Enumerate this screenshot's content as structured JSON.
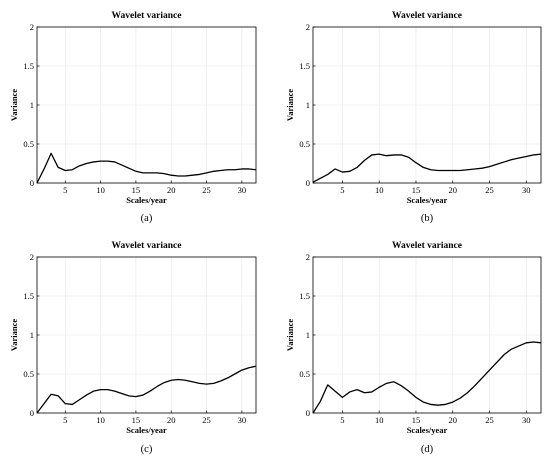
{
  "chart_data": [
    {
      "type": "line",
      "title": "Wavelet variance",
      "xlabel": "Scales/year",
      "ylabel": "Variance",
      "caption": "(a)",
      "xlim": [
        1,
        32
      ],
      "ylim": [
        0,
        2
      ],
      "xticks": [
        "5",
        "10",
        "15",
        "20",
        "25",
        "30"
      ],
      "yticks": [
        "0",
        "0.5",
        "1",
        "1.5",
        "2"
      ],
      "grid": true,
      "series": [
        {
          "x": [
            1,
            2,
            3,
            4,
            5,
            6,
            7,
            8,
            9,
            10,
            11,
            12,
            13,
            14,
            15,
            16,
            17,
            18,
            19,
            20,
            21,
            22,
            23,
            24,
            25,
            26,
            27,
            28,
            29,
            30,
            31,
            32
          ],
          "y": [
            0.0,
            0.18,
            0.38,
            0.2,
            0.16,
            0.17,
            0.22,
            0.25,
            0.27,
            0.28,
            0.28,
            0.27,
            0.23,
            0.19,
            0.15,
            0.13,
            0.13,
            0.13,
            0.12,
            0.1,
            0.09,
            0.09,
            0.1,
            0.11,
            0.13,
            0.15,
            0.16,
            0.17,
            0.17,
            0.18,
            0.18,
            0.17
          ]
        }
      ]
    },
    {
      "type": "line",
      "title": "Wavelet variance",
      "xlabel": "Scales/year",
      "ylabel": "Variance",
      "caption": "(b)",
      "xlim": [
        1,
        32
      ],
      "ylim": [
        0,
        2
      ],
      "xticks": [
        "5",
        "10",
        "15",
        "20",
        "25",
        "30"
      ],
      "yticks": [
        "0",
        "0.5",
        "1",
        "1.5",
        "2"
      ],
      "grid": true,
      "series": [
        {
          "x": [
            1,
            2,
            3,
            4,
            5,
            6,
            7,
            8,
            9,
            10,
            11,
            12,
            13,
            14,
            15,
            16,
            17,
            18,
            19,
            20,
            21,
            22,
            23,
            24,
            25,
            26,
            27,
            28,
            29,
            30,
            31,
            32
          ],
          "y": [
            0.01,
            0.06,
            0.11,
            0.18,
            0.14,
            0.15,
            0.2,
            0.29,
            0.36,
            0.37,
            0.35,
            0.36,
            0.36,
            0.33,
            0.26,
            0.2,
            0.17,
            0.16,
            0.16,
            0.16,
            0.16,
            0.17,
            0.18,
            0.19,
            0.21,
            0.24,
            0.27,
            0.3,
            0.32,
            0.34,
            0.36,
            0.37
          ]
        }
      ]
    },
    {
      "type": "line",
      "title": "Wavelet variance",
      "xlabel": "Scales/year",
      "ylabel": "Variance",
      "caption": "(c)",
      "xlim": [
        1,
        32
      ],
      "ylim": [
        0,
        2
      ],
      "xticks": [
        "5",
        "10",
        "15",
        "20",
        "25",
        "30"
      ],
      "yticks": [
        "0",
        "0.5",
        "1",
        "1.5",
        "2"
      ],
      "grid": true,
      "series": [
        {
          "x": [
            1,
            2,
            3,
            4,
            5,
            6,
            7,
            8,
            9,
            10,
            11,
            12,
            13,
            14,
            15,
            16,
            17,
            18,
            19,
            20,
            21,
            22,
            23,
            24,
            25,
            26,
            27,
            28,
            29,
            30,
            31,
            32
          ],
          "y": [
            0.0,
            0.12,
            0.24,
            0.22,
            0.12,
            0.11,
            0.17,
            0.23,
            0.28,
            0.3,
            0.3,
            0.28,
            0.25,
            0.22,
            0.21,
            0.23,
            0.28,
            0.34,
            0.39,
            0.42,
            0.43,
            0.42,
            0.4,
            0.38,
            0.37,
            0.38,
            0.41,
            0.45,
            0.5,
            0.55,
            0.58,
            0.6
          ]
        }
      ]
    },
    {
      "type": "line",
      "title": "Wavelet variance",
      "xlabel": "Scales/year",
      "ylabel": "Variance",
      "caption": "(d)",
      "xlim": [
        1,
        32
      ],
      "ylim": [
        0,
        2
      ],
      "xticks": [
        "5",
        "10",
        "15",
        "20",
        "25",
        "30"
      ],
      "yticks": [
        "0",
        "0.5",
        "1",
        "1.5",
        "2"
      ],
      "grid": true,
      "series": [
        {
          "x": [
            1,
            2,
            3,
            4,
            5,
            6,
            7,
            8,
            9,
            10,
            11,
            12,
            13,
            14,
            15,
            16,
            17,
            18,
            19,
            20,
            21,
            22,
            23,
            24,
            25,
            26,
            27,
            28,
            29,
            30,
            31,
            32
          ],
          "y": [
            0.0,
            0.15,
            0.36,
            0.28,
            0.2,
            0.27,
            0.3,
            0.26,
            0.27,
            0.33,
            0.38,
            0.4,
            0.35,
            0.28,
            0.2,
            0.14,
            0.11,
            0.1,
            0.11,
            0.14,
            0.19,
            0.26,
            0.35,
            0.45,
            0.55,
            0.65,
            0.75,
            0.82,
            0.86,
            0.9,
            0.91,
            0.9
          ]
        }
      ]
    }
  ]
}
